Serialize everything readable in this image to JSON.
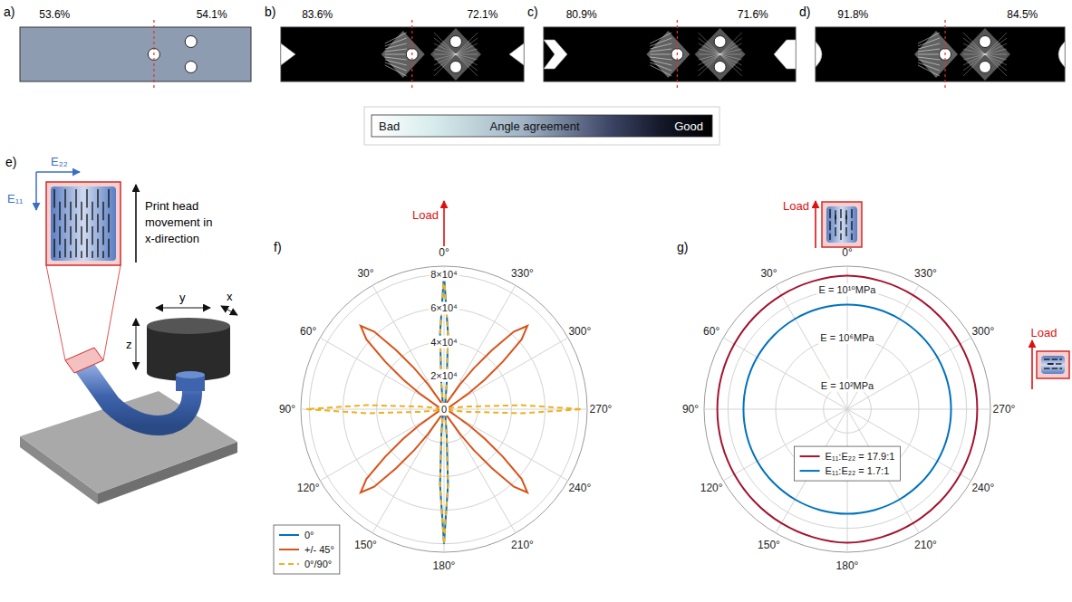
{
  "figure": {
    "top_panels": [
      {
        "letter": "a)",
        "labels": [
          "53.6%",
          "54.1%"
        ]
      },
      {
        "letter": "b)",
        "labels": [
          "83.6%",
          "72.1%"
        ]
      },
      {
        "letter": "c)",
        "labels": [
          "80.9%",
          "71.6%"
        ]
      },
      {
        "letter": "d)",
        "labels": [
          "91.8%",
          "84.5%"
        ]
      }
    ],
    "colorbar": {
      "low": "Bad",
      "title": "Angle agreement",
      "high": "Good"
    },
    "schematic": {
      "letter": "e)",
      "e22": "E₂₂",
      "e11": "E₁₁",
      "movement": [
        "Print head",
        "movement in",
        "x-direction"
      ],
      "axes": {
        "x": "x",
        "y": "y",
        "z": "z"
      }
    }
  },
  "chart_data": [
    {
      "type": "polar",
      "panel": "f)",
      "annotations": [
        "Load"
      ],
      "xlim": [
        0,
        360
      ],
      "xticks": [
        {
          "value": 0,
          "label": "0°"
        },
        {
          "value": 30,
          "label": "30°"
        },
        {
          "value": 60,
          "label": "60°"
        },
        {
          "value": 90,
          "label": "90°"
        },
        {
          "value": 120,
          "label": "120°"
        },
        {
          "value": 150,
          "label": "150°"
        },
        {
          "value": 180,
          "label": "180°"
        },
        {
          "value": 210,
          "label": "210°"
        },
        {
          "value": 240,
          "label": "240°"
        },
        {
          "value": 270,
          "label": "270°"
        },
        {
          "value": 300,
          "label": "300°"
        },
        {
          "value": 330,
          "label": "330°"
        }
      ],
      "ylim": [
        0,
        85000
      ],
      "yticks": [
        0,
        {
          "value": 20000,
          "label": "2×10⁴"
        },
        {
          "value": 40000,
          "label": "4×10⁴"
        },
        {
          "value": 60000,
          "label": "6×10⁴"
        },
        {
          "value": 80000,
          "label": "8×10⁴"
        }
      ],
      "grid": true,
      "legend": "lower left",
      "x": [
        0,
        3,
        6,
        9,
        12,
        22.5,
        33,
        36,
        39,
        42,
        45,
        48,
        51,
        54,
        57,
        67.5,
        78,
        81,
        84,
        87,
        90,
        93,
        96,
        99,
        102,
        112.5,
        123,
        126,
        129,
        132,
        135,
        138,
        141,
        144,
        147,
        157.5,
        168,
        171,
        174,
        177,
        180,
        183,
        186,
        189,
        192,
        202.5,
        213,
        216,
        219,
        222,
        225,
        228,
        231,
        234,
        237,
        247.5,
        258,
        261,
        264,
        267,
        270,
        273,
        276,
        279,
        282,
        292.5,
        303,
        306,
        309,
        312,
        315,
        318,
        321,
        324,
        327,
        337.5,
        348,
        351,
        354,
        357
      ],
      "series": [
        {
          "name": "0°",
          "color": "#0072BD",
          "line_style": "solid",
          "values": [
            80000,
            45000,
            15000,
            6000,
            3500,
            1500,
            1000,
            1000,
            900,
            900,
            800,
            800,
            800,
            800,
            800,
            700,
            700,
            700,
            700,
            700,
            700,
            700,
            700,
            700,
            700,
            700,
            800,
            800,
            800,
            800,
            800,
            900,
            900,
            1000,
            1000,
            1500,
            3500,
            6000,
            15000,
            45000,
            80000,
            45000,
            15000,
            6000,
            3500,
            1500,
            1000,
            1000,
            900,
            900,
            800,
            800,
            800,
            800,
            800,
            700,
            700,
            700,
            700,
            700,
            700,
            700,
            700,
            700,
            700,
            700,
            800,
            800,
            800,
            800,
            800,
            900,
            900,
            1000,
            1000,
            1500,
            3500,
            6000,
            15000,
            45000
          ]
        },
        {
          "name": "+/- 45°",
          "color": "#D95319",
          "line_style": "solid",
          "values": [
            3000,
            2500,
            2200,
            2000,
            2000,
            4000,
            18000,
            30000,
            45000,
            62000,
            70000,
            62000,
            45000,
            30000,
            18000,
            4000,
            2000,
            2000,
            2200,
            2500,
            3000,
            2500,
            2200,
            2000,
            2000,
            4000,
            18000,
            30000,
            45000,
            62000,
            70000,
            62000,
            45000,
            30000,
            18000,
            4000,
            2000,
            2000,
            2200,
            2500,
            3000,
            2500,
            2200,
            2000,
            2000,
            4000,
            18000,
            30000,
            45000,
            62000,
            70000,
            62000,
            45000,
            30000,
            18000,
            4000,
            2000,
            2000,
            2200,
            2500,
            3000,
            2500,
            2200,
            2000,
            2000,
            4000,
            18000,
            30000,
            45000,
            62000,
            70000,
            62000,
            45000,
            30000,
            18000,
            4000,
            2000,
            2000,
            2200,
            2500
          ]
        },
        {
          "name": "0°/90°",
          "color": "#EDB120",
          "line_style": "dashed",
          "values": [
            80000,
            45000,
            15000,
            6000,
            3500,
            1500,
            1000,
            1000,
            900,
            900,
            900,
            900,
            900,
            1000,
            1000,
            1500,
            3500,
            6000,
            15000,
            46000,
            82000,
            46000,
            15000,
            6000,
            3500,
            1500,
            1000,
            1000,
            900,
            900,
            900,
            900,
            900,
            1000,
            1000,
            1500,
            3500,
            6000,
            15000,
            45000,
            80000,
            45000,
            15000,
            6000,
            3500,
            1500,
            1000,
            1000,
            900,
            900,
            900,
            900,
            900,
            1000,
            1000,
            1500,
            3500,
            6000,
            15000,
            46000,
            82000,
            46000,
            15000,
            6000,
            3500,
            1500,
            1000,
            1000,
            900,
            900,
            900,
            900,
            900,
            1000,
            1000,
            1500,
            3500,
            6000,
            15000,
            45000
          ]
        }
      ]
    },
    {
      "type": "polar",
      "panel": "g)",
      "annotations": [
        "Load",
        "Load"
      ],
      "log": "y",
      "xlim": [
        0,
        360
      ],
      "xticks": [
        {
          "value": 0,
          "label": "0°"
        },
        {
          "value": 30,
          "label": "30°"
        },
        {
          "value": 60,
          "label": "60°"
        },
        {
          "value": 90,
          "label": "90°"
        },
        {
          "value": 120,
          "label": "120°"
        },
        {
          "value": 150,
          "label": "150°"
        },
        {
          "value": 180,
          "label": "180°"
        },
        {
          "value": 210,
          "label": "210°"
        },
        {
          "value": 240,
          "label": "240°"
        },
        {
          "value": 270,
          "label": "270°"
        },
        {
          "value": 300,
          "label": "300°"
        },
        {
          "value": 330,
          "label": "330°"
        }
      ],
      "ylim": [
        1,
        1000000000000
      ],
      "yticks": [
        {
          "value": 100,
          "label": "E = 10²MPa"
        },
        {
          "value": 1000000,
          "label": "E = 10⁶MPa"
        },
        {
          "value": 10000000000,
          "label": "E = 10¹⁰MPa"
        }
      ],
      "grid": true,
      "legend": "center",
      "x": [
        0,
        15,
        30,
        45,
        60,
        75,
        90,
        105,
        120,
        135,
        150,
        165,
        180,
        195,
        210,
        225,
        240,
        255,
        270,
        285,
        300,
        315,
        330,
        345
      ],
      "series": [
        {
          "name": "E₁₁:E₂₂ = 17.9:1",
          "color": "#A2142F",
          "values": [
            160000000000,
            130000000000,
            110000000000,
            95000000000,
            85000000000,
            80000000000,
            78000000000,
            80000000000,
            85000000000,
            95000000000,
            110000000000,
            130000000000,
            160000000000,
            130000000000,
            110000000000,
            95000000000,
            85000000000,
            80000000000,
            78000000000,
            80000000000,
            85000000000,
            95000000000,
            110000000000,
            130000000000
          ]
        },
        {
          "name": "E₁₁:E₂₂ = 1.7:1",
          "color": "#0072BD",
          "values": [
            600000000,
            580000000,
            560000000,
            540000000,
            520000000,
            510000000,
            500000000,
            510000000,
            520000000,
            540000000,
            560000000,
            580000000,
            600000000,
            580000000,
            560000000,
            540000000,
            520000000,
            510000000,
            500000000,
            510000000,
            520000000,
            540000000,
            560000000,
            580000000
          ]
        }
      ]
    }
  ]
}
